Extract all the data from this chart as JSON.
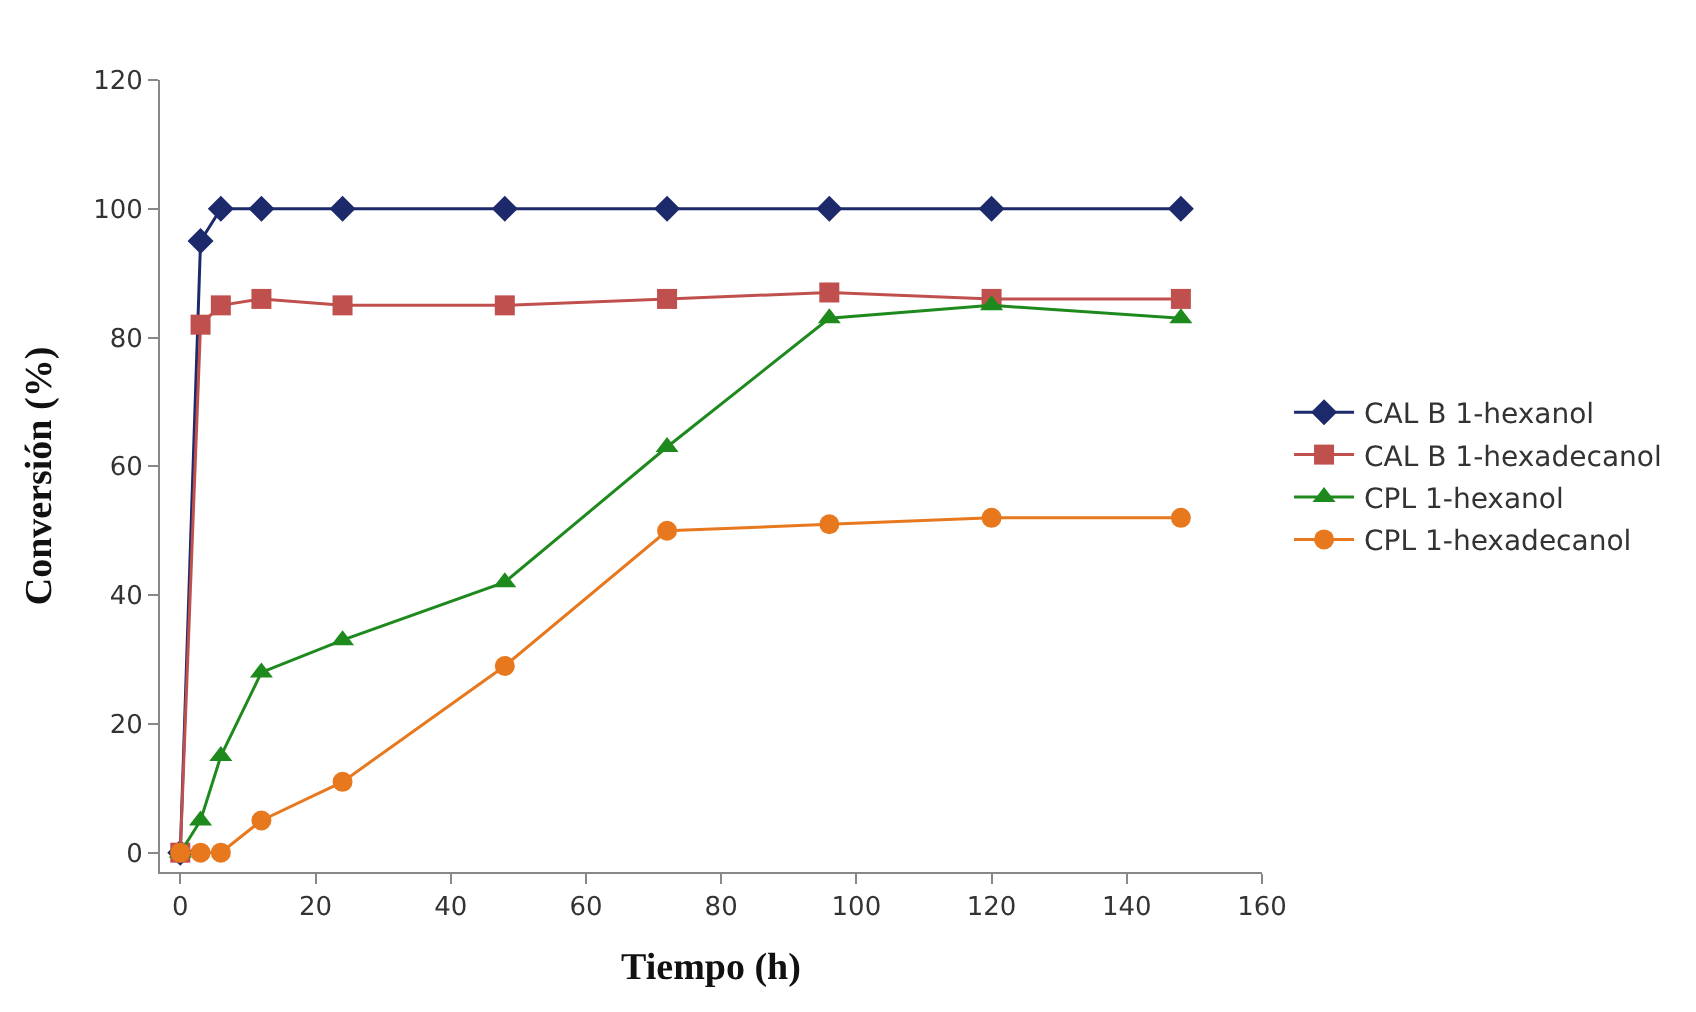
{
  "chart_data": {
    "type": "line",
    "xlabel": "Tiempo (h)",
    "ylabel": "Conversión (%)",
    "x": [
      0,
      3,
      6,
      12,
      24,
      48,
      72,
      96,
      120,
      148
    ],
    "xlim": [
      -3,
      160
    ],
    "xticks": [
      0,
      20,
      40,
      60,
      80,
      100,
      120,
      140,
      160
    ],
    "ylim": [
      -3,
      120
    ],
    "yticks": [
      0,
      20,
      40,
      60,
      80,
      100,
      120
    ],
    "legend": "right",
    "series": [
      {
        "name": "CAL B 1-hexanol",
        "color": "#1c2a6b",
        "marker": "diamond",
        "values": [
          0,
          95,
          100,
          100,
          100,
          100,
          100,
          100,
          100,
          100
        ]
      },
      {
        "name": "CAL B 1-hexadecanol",
        "color": "#c0504d",
        "marker": "square",
        "values": [
          0,
          82,
          85,
          86,
          85,
          85,
          86,
          87,
          86,
          86
        ]
      },
      {
        "name": "CPL 1-hexanol",
        "color": "#1e8a1e",
        "marker": "triangle",
        "values": [
          0,
          5,
          15,
          28,
          33,
          42,
          63,
          83,
          85,
          83
        ]
      },
      {
        "name": "CPL 1-hexadecanol",
        "color": "#e8781e",
        "marker": "circle",
        "values": [
          0,
          0,
          0,
          5,
          11,
          29,
          50,
          51,
          52,
          52
        ]
      }
    ]
  }
}
